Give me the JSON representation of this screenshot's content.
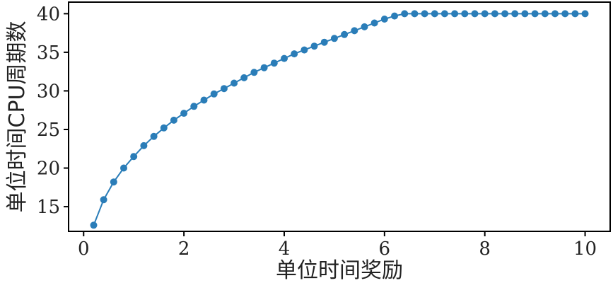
{
  "chart_data": {
    "type": "line",
    "title": "",
    "xlabel": "单位时间奖励",
    "ylabel": "单位时间CPU周期数",
    "xlim": [
      -0.3,
      10.5
    ],
    "ylim": [
      11.8,
      41.5
    ],
    "xticks": [
      0,
      2,
      4,
      6,
      8,
      10
    ],
    "yticks": [
      15,
      20,
      25,
      30,
      35,
      40
    ],
    "grid": false,
    "legend": "none",
    "series": [
      {
        "color": "#2a7db8",
        "marker": "circle",
        "x": [
          0.2,
          0.4,
          0.6,
          0.8,
          1.0,
          1.2,
          1.4,
          1.6,
          1.8,
          2.0,
          2.2,
          2.4,
          2.6,
          2.8,
          3.0,
          3.2,
          3.4,
          3.6,
          3.8,
          4.0,
          4.2,
          4.4,
          4.6,
          4.8,
          5.0,
          5.2,
          5.4,
          5.6,
          5.8,
          6.0,
          6.2,
          6.4,
          6.6,
          6.8,
          7.0,
          7.2,
          7.4,
          7.6,
          7.8,
          8.0,
          8.2,
          8.4,
          8.6,
          8.8,
          9.0,
          9.2,
          9.4,
          9.6,
          9.8,
          10.0
        ],
        "y": [
          12.6,
          15.9,
          18.2,
          20.0,
          21.5,
          22.9,
          24.1,
          25.2,
          26.2,
          27.1,
          28.0,
          28.8,
          29.6,
          30.3,
          31.0,
          31.7,
          32.4,
          33.0,
          33.6,
          34.2,
          34.8,
          35.3,
          35.8,
          36.3,
          36.8,
          37.3,
          37.8,
          38.3,
          38.8,
          39.3,
          39.7,
          40.0,
          40.0,
          40.0,
          40.0,
          40.0,
          40.0,
          40.0,
          40.0,
          40.0,
          40.0,
          40.0,
          40.0,
          40.0,
          40.0,
          40.0,
          40.0,
          40.0,
          40.0,
          40.0
        ]
      }
    ]
  }
}
